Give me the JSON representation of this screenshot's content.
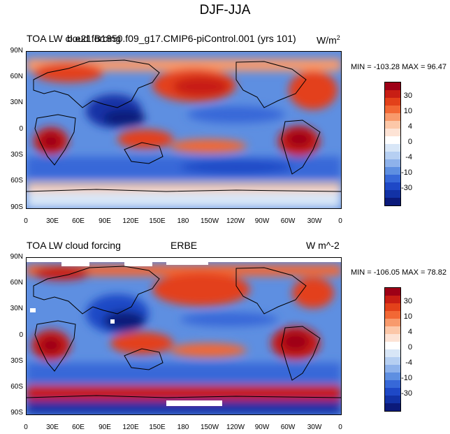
{
  "page": {
    "title": "DJF-JJA"
  },
  "colorbar_colors": [
    "#9e0016",
    "#c81e14",
    "#e3411a",
    "#f26835",
    "#f89a6c",
    "#fcc7a8",
    "#fde3d5",
    "#ffffff",
    "#d8e6f7",
    "#b6cff2",
    "#8eb2eb",
    "#5e8fe1",
    "#3768d8",
    "#1e48c6",
    "#1232a6",
    "#0b1a7a"
  ],
  "colorbar_labels": [
    "30",
    "10",
    "4",
    "0",
    "-4",
    "-10",
    "-30"
  ],
  "lat_ticks": [
    "90N",
    "60N",
    "30N",
    "0",
    "30S",
    "60S",
    "90S"
  ],
  "lon_ticks": [
    "0",
    "30E",
    "60E",
    "90E",
    "120E",
    "150E",
    "180",
    "150W",
    "120W",
    "90W",
    "60W",
    "30W",
    "0"
  ],
  "panels": [
    {
      "left_title": "TOA LW cloud forcing",
      "center_title": "b.e21.B1850.f09_g17.CMIP6-piControl.001 (yrs 101)",
      "units": "W/m",
      "units_sup": "2",
      "minmax": "MIN = -103.28 MAX =  96.47",
      "map_variant": "model"
    },
    {
      "left_title": "TOA LW cloud forcing",
      "center_title": "ERBE",
      "units": "W m^-2",
      "units_sup": "",
      "minmax": "MIN = -106.05 MAX =  78.82",
      "map_variant": "obs"
    }
  ]
}
